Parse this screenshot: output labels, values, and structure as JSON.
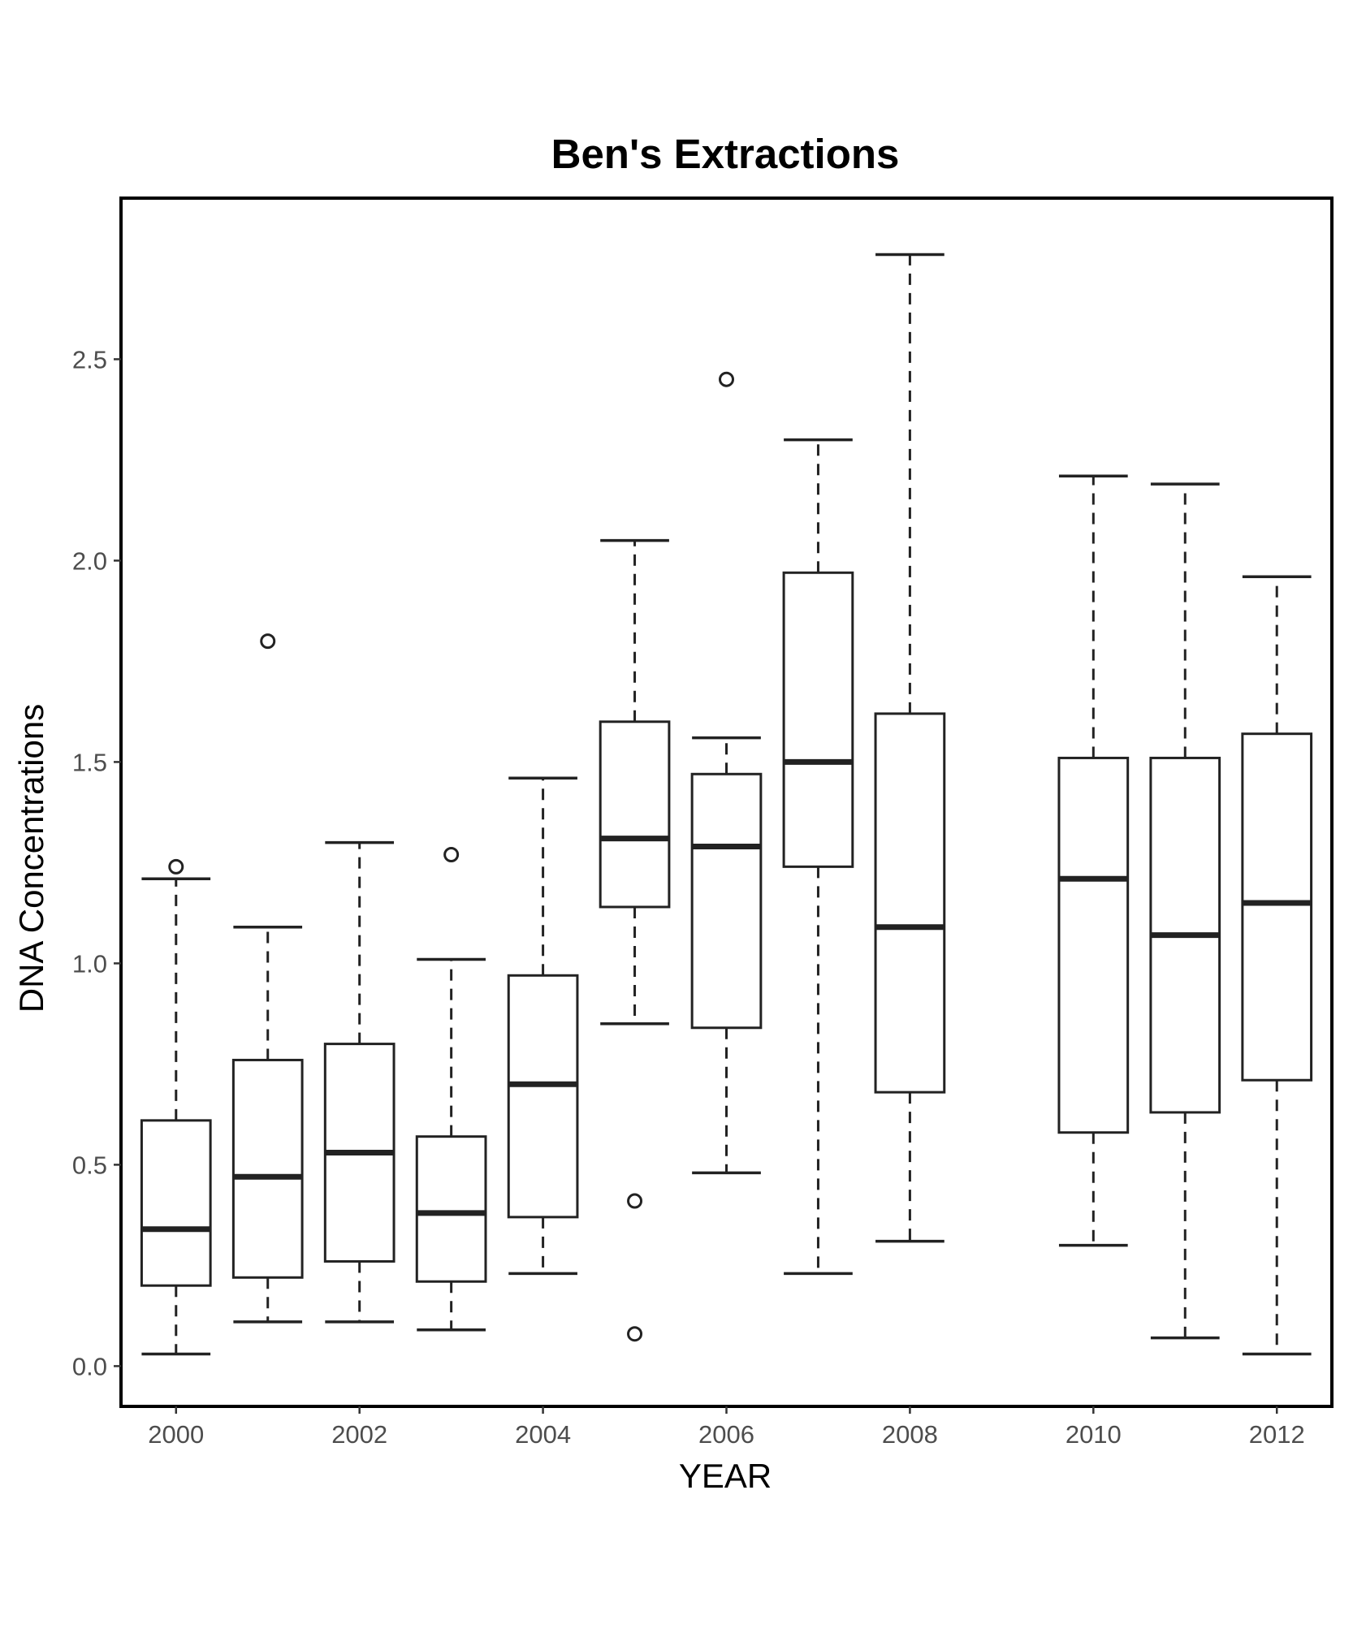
{
  "chart_data": {
    "type": "box",
    "title": "Ben's Extractions",
    "xlabel": "YEAR",
    "ylabel": "DNA Concentrations",
    "ylim": [
      -0.1,
      2.9
    ],
    "xlim": [
      1999.4,
      2012.6
    ],
    "yticks": [
      0.0,
      0.5,
      1.0,
      1.5,
      2.0,
      2.5
    ],
    "ytick_labels": [
      "0.0",
      "0.5",
      "1.0",
      "1.5",
      "2.0",
      "2.5"
    ],
    "xticks": [
      2000,
      2002,
      2004,
      2006,
      2008,
      2010,
      2012
    ],
    "xtick_labels": [
      "2000",
      "2002",
      "2004",
      "2006",
      "2008",
      "2010",
      "2012"
    ],
    "grid": false,
    "boxes": [
      {
        "year": 2000,
        "whisker_low": 0.03,
        "q1": 0.2,
        "median": 0.34,
        "q3": 0.61,
        "whisker_high": 1.21,
        "outliers": [
          1.24
        ]
      },
      {
        "year": 2001,
        "whisker_low": 0.11,
        "q1": 0.22,
        "median": 0.47,
        "q3": 0.76,
        "whisker_high": 1.09,
        "outliers": [
          1.8
        ]
      },
      {
        "year": 2002,
        "whisker_low": 0.11,
        "q1": 0.26,
        "median": 0.53,
        "q3": 0.8,
        "whisker_high": 1.3,
        "outliers": []
      },
      {
        "year": 2003,
        "whisker_low": 0.09,
        "q1": 0.21,
        "median": 0.38,
        "q3": 0.57,
        "whisker_high": 1.01,
        "outliers": [
          1.27
        ]
      },
      {
        "year": 2004,
        "whisker_low": 0.23,
        "q1": 0.37,
        "median": 0.7,
        "q3": 0.97,
        "whisker_high": 1.46,
        "outliers": []
      },
      {
        "year": 2005,
        "whisker_low": 0.85,
        "q1": 1.14,
        "median": 1.31,
        "q3": 1.6,
        "whisker_high": 2.05,
        "outliers": [
          0.41,
          0.08
        ]
      },
      {
        "year": 2006,
        "whisker_low": 0.48,
        "q1": 0.84,
        "median": 1.29,
        "q3": 1.47,
        "whisker_high": 1.56,
        "outliers": [
          2.45
        ]
      },
      {
        "year": 2007,
        "whisker_low": 0.23,
        "q1": 1.24,
        "median": 1.5,
        "q3": 1.97,
        "whisker_high": 2.3,
        "outliers": []
      },
      {
        "year": 2008,
        "whisker_low": 0.31,
        "q1": 0.68,
        "median": 1.09,
        "q3": 1.62,
        "whisker_high": 2.76,
        "outliers": []
      },
      {
        "year": 2010,
        "whisker_low": 0.3,
        "q1": 0.58,
        "median": 1.21,
        "q3": 1.51,
        "whisker_high": 2.21,
        "outliers": []
      },
      {
        "year": 2011,
        "whisker_low": 0.07,
        "q1": 0.63,
        "median": 1.07,
        "q3": 1.51,
        "whisker_high": 2.19,
        "outliers": []
      },
      {
        "year": 2012,
        "whisker_low": 0.03,
        "q1": 0.71,
        "median": 1.15,
        "q3": 1.57,
        "whisker_high": 1.96,
        "outliers": []
      }
    ]
  }
}
